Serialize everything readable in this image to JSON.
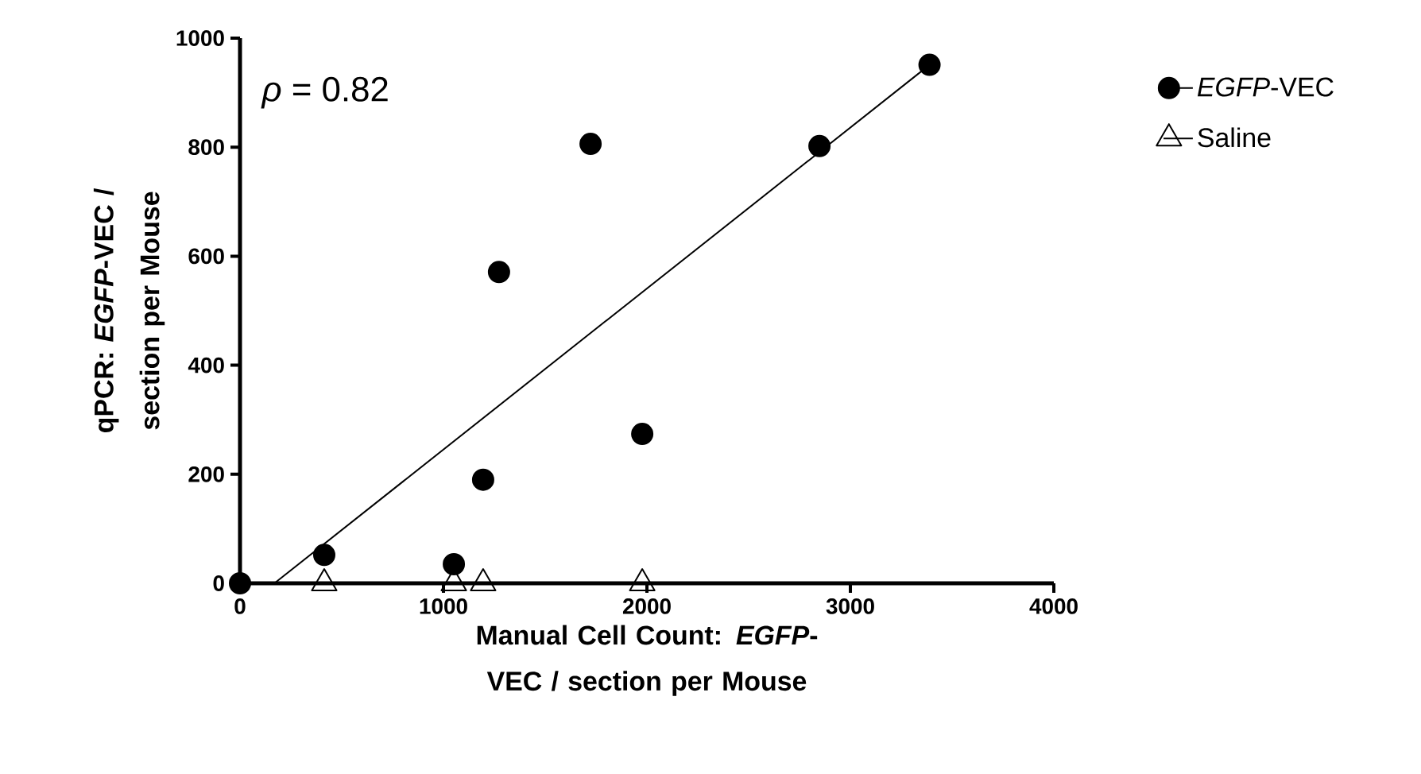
{
  "chart_data": {
    "type": "scatter",
    "xlabel": "Manual Cell Count: *EGFP*-VEC / section per Mouse",
    "ylabel": "qPCR: *EGFP*-VEC / section per Mouse",
    "annotations": [
      "*ρ* = 0.82"
    ],
    "xlim": [
      0,
      4000
    ],
    "ylim": [
      0,
      1000
    ],
    "xticks": [
      0,
      1000,
      2000,
      3000,
      4000
    ],
    "yticks": [
      0,
      200,
      400,
      600,
      800,
      1000
    ],
    "legend": "right",
    "series": [
      {
        "name": "*EGFP*-VEC",
        "color": "#000000",
        "marker": "circle",
        "x": [
          0,
          414,
          1051,
          1195,
          1273,
          1723,
          1977,
          2848,
          3389
        ],
        "values": [
          0,
          52,
          35,
          190,
          571,
          806,
          274,
          802,
          951
        ]
      },
      {
        "name": "Saline",
        "color": "#000000",
        "marker": "triangle",
        "x": [
          414,
          1051,
          1195,
          1977
        ],
        "values": [
          0,
          0,
          0,
          0
        ]
      },
      {
        "type": "line",
        "color": "#000000",
        "marker": "none",
        "x": [
          169,
          3389
        ],
        "values": [
          0,
          951
        ]
      }
    ]
  }
}
